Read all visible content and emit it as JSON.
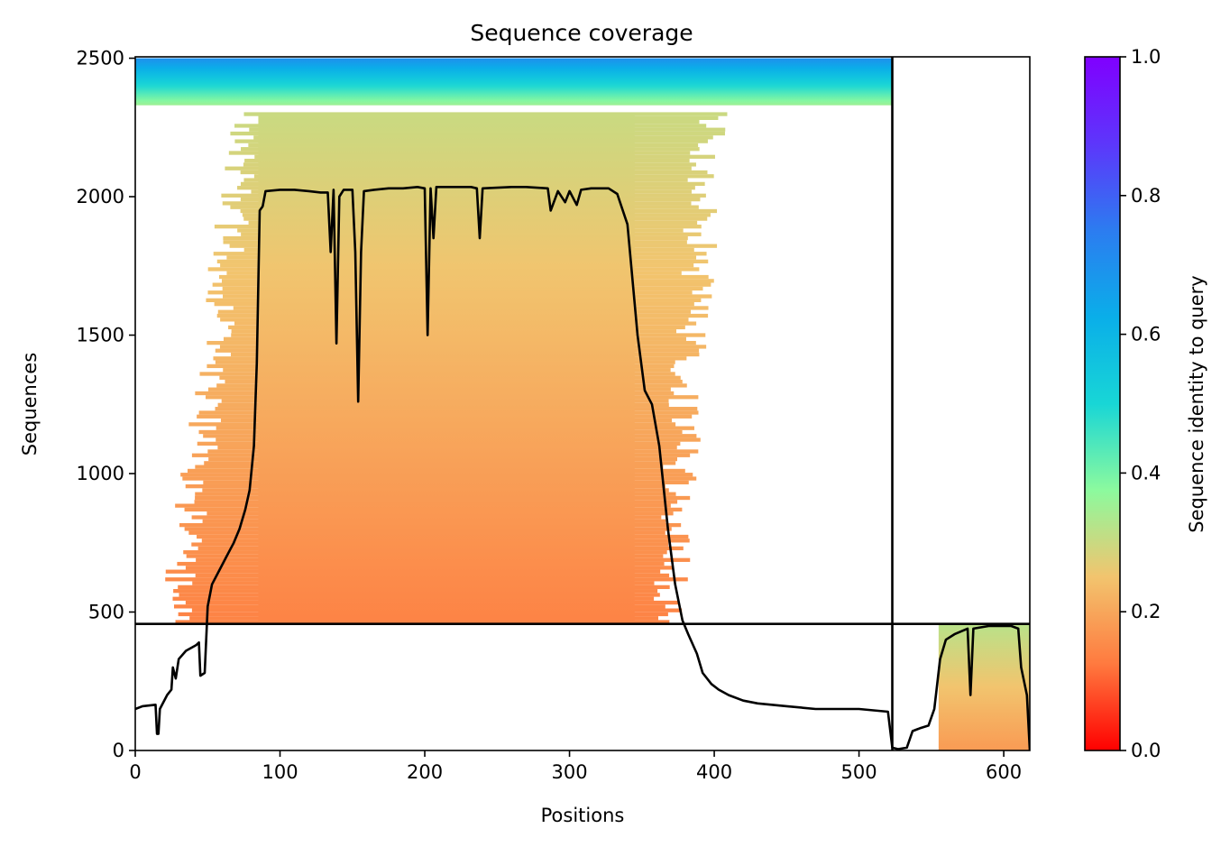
{
  "chart_data": {
    "type": "heatmap",
    "title": "Sequence coverage",
    "xlabel": "Positions",
    "ylabel": "Sequences",
    "xlim": [
      0,
      618
    ],
    "ylim": [
      0,
      2505
    ],
    "x_ticks": [
      0,
      100,
      200,
      300,
      400,
      500,
      600
    ],
    "y_ticks": [
      0,
      500,
      1000,
      1500,
      2000,
      2500
    ],
    "colorbar": {
      "label": "Sequence identity to query",
      "range": [
        0,
        1
      ],
      "ticks": [
        "0.0",
        "0.2",
        "0.4",
        "0.6",
        "0.8",
        "1.0"
      ],
      "colormap": "rainbow",
      "stops": [
        "#ff0000",
        "#ff7a3f",
        "#f2c46e",
        "#8cfa9e",
        "#18d6d6",
        "#0aaee9",
        "#2c7cf0",
        "#5d36fb",
        "#8000ff"
      ]
    },
    "chain_boundaries": {
      "vertical_x": 523,
      "horizontal_y": 457
    },
    "coverage_blocks": [
      {
        "name": "chain-1-top-high-identity",
        "x_start": 0,
        "x_end": 523,
        "y_start": 2330,
        "y_end": 2500,
        "identity": [
          0.35,
          0.7
        ]
      },
      {
        "name": "chain-1-core",
        "x_start": 85,
        "x_end": 345,
        "y_start": 457,
        "y_end": 2300,
        "identity": [
          0.14,
          0.3
        ]
      },
      {
        "name": "chain-2-block",
        "x_start": 555,
        "x_end": 618,
        "y_start": 0,
        "y_end": 457,
        "identity": [
          0.18,
          0.32
        ]
      }
    ],
    "coverage_line": {
      "color": "#000000",
      "points": [
        [
          0,
          150
        ],
        [
          5,
          160
        ],
        [
          14,
          165
        ],
        [
          15,
          60
        ],
        [
          16,
          60
        ],
        [
          17,
          150
        ],
        [
          22,
          200
        ],
        [
          25,
          220
        ],
        [
          26,
          300
        ],
        [
          28,
          260
        ],
        [
          30,
          330
        ],
        [
          35,
          360
        ],
        [
          42,
          380
        ],
        [
          44,
          390
        ],
        [
          45,
          270
        ],
        [
          48,
          280
        ],
        [
          50,
          520
        ],
        [
          53,
          600
        ],
        [
          58,
          650
        ],
        [
          63,
          700
        ],
        [
          68,
          750
        ],
        [
          72,
          800
        ],
        [
          76,
          870
        ],
        [
          79,
          940
        ],
        [
          82,
          1100
        ],
        [
          84,
          1400
        ],
        [
          86,
          1950
        ],
        [
          88,
          1965
        ],
        [
          90,
          2020
        ],
        [
          100,
          2025
        ],
        [
          110,
          2025
        ],
        [
          120,
          2020
        ],
        [
          128,
          2015
        ],
        [
          133,
          2015
        ],
        [
          135,
          1800
        ],
        [
          137,
          2025
        ],
        [
          139,
          1470
        ],
        [
          141,
          2000
        ],
        [
          144,
          2025
        ],
        [
          150,
          2025
        ],
        [
          152,
          1800
        ],
        [
          154,
          1260
        ],
        [
          156,
          1800
        ],
        [
          158,
          2020
        ],
        [
          165,
          2025
        ],
        [
          175,
          2030
        ],
        [
          185,
          2030
        ],
        [
          195,
          2035
        ],
        [
          200,
          2030
        ],
        [
          202,
          1500
        ],
        [
          204,
          2030
        ],
        [
          206,
          1850
        ],
        [
          208,
          2035
        ],
        [
          220,
          2035
        ],
        [
          232,
          2035
        ],
        [
          236,
          2030
        ],
        [
          238,
          1850
        ],
        [
          240,
          2030
        ],
        [
          260,
          2035
        ],
        [
          270,
          2035
        ],
        [
          285,
          2030
        ],
        [
          287,
          1950
        ],
        [
          292,
          2020
        ],
        [
          297,
          1980
        ],
        [
          300,
          2020
        ],
        [
          305,
          1970
        ],
        [
          308,
          2025
        ],
        [
          315,
          2030
        ],
        [
          327,
          2030
        ],
        [
          333,
          2010
        ],
        [
          340,
          1900
        ],
        [
          347,
          1500
        ],
        [
          352,
          1300
        ],
        [
          357,
          1250
        ],
        [
          362,
          1100
        ],
        [
          368,
          800
        ],
        [
          373,
          600
        ],
        [
          378,
          470
        ],
        [
          382,
          420
        ],
        [
          388,
          350
        ],
        [
          392,
          280
        ],
        [
          398,
          240
        ],
        [
          403,
          220
        ],
        [
          410,
          200
        ],
        [
          420,
          180
        ],
        [
          430,
          170
        ],
        [
          450,
          160
        ],
        [
          470,
          150
        ],
        [
          500,
          150
        ],
        [
          520,
          140
        ],
        [
          523,
          10
        ],
        [
          527,
          5
        ],
        [
          533,
          10
        ],
        [
          537,
          70
        ],
        [
          542,
          80
        ],
        [
          548,
          90
        ],
        [
          552,
          150
        ],
        [
          556,
          330
        ],
        [
          560,
          400
        ],
        [
          566,
          420
        ],
        [
          575,
          440
        ],
        [
          577,
          200
        ],
        [
          579,
          440
        ],
        [
          590,
          450
        ],
        [
          605,
          450
        ],
        [
          610,
          440
        ],
        [
          612,
          300
        ],
        [
          616,
          200
        ],
        [
          618,
          0
        ]
      ]
    }
  }
}
